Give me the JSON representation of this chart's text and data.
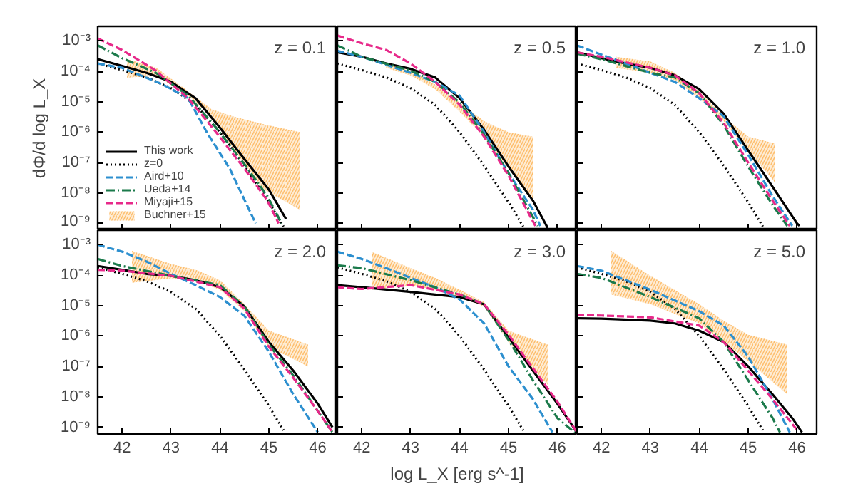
{
  "chart_data": [
    {
      "type": "line",
      "log": true,
      "xlim": [
        41.5,
        46.4
      ],
      "ylim": [
        6e-10,
        0.003
      ],
      "xticks": [
        42,
        43,
        44,
        45,
        46
      ],
      "yticks": [
        {
          "value": 0.001,
          "label": "10⁻³"
        },
        {
          "value": 0.0001,
          "label": "10⁻⁴"
        },
        {
          "value": 1e-05,
          "label": "10⁻⁵"
        },
        {
          "value": 1e-06,
          "label": "10⁻⁶"
        },
        {
          "value": 1e-07,
          "label": "10⁻⁷"
        },
        {
          "value": 1e-08,
          "label": "10⁻⁸"
        },
        {
          "value": 1e-09,
          "label": "10⁻⁹"
        }
      ],
      "tick_labels": "y",
      "ylabel": "dΦ/d log L_X",
      "annotations": [
        "z = 0.1"
      ],
      "legend": "bottom left",
      "series": [
        {
          "name": "This work",
          "type": "line",
          "color": "#000000",
          "line_style": "solid",
          "x": [
            41.5,
            42,
            42.5,
            43,
            43.5,
            44,
            44.5,
            45,
            45.35
          ],
          "values": [
            0.00025,
            0.00015,
            8.9e-05,
            4.5e-05,
            1.3e-05,
            1.4e-06,
            1.3e-07,
            1.3e-08,
            1.4e-09
          ]
        },
        {
          "name": "z=0",
          "type": "line",
          "color": "#000000",
          "line_style": "dotted",
          "x": [
            41.5,
            42,
            42.5,
            43,
            43.5,
            44,
            44.5,
            45,
            45.3
          ],
          "values": [
            0.00018,
            0.00011,
            6.3e-05,
            2.8e-05,
            7.9e-06,
            1e-06,
            7.9e-08,
            5e-09,
            7.9e-10
          ]
        },
        {
          "name": "Aird+10",
          "type": "line",
          "color": "#2c8fcf",
          "line_style": "dashed",
          "x": [
            41.5,
            42,
            42.83,
            43.35,
            43.73,
            44.2,
            44.73
          ],
          "values": [
            0.00018,
            0.00013,
            3.7e-05,
            1.3e-05,
            1e-06,
            6.3e-08,
            1e-09
          ]
        },
        {
          "name": "Ueda+14",
          "type": "line",
          "color": "#1b7a4b",
          "line_style": "dashdot",
          "x": [
            41.5,
            42,
            42.69,
            43.35,
            43.92,
            44.5,
            44.97,
            45.26
          ],
          "values": [
            0.00071,
            0.00027,
            8.9e-05,
            1.6e-05,
            1.4e-06,
            8.9e-08,
            7.9e-09,
            1e-09
          ]
        },
        {
          "name": "Miyaji+15",
          "type": "line",
          "color": "#e7298a",
          "line_style": "dashed",
          "x": [
            41.5,
            42,
            42.69,
            43.35,
            43.92,
            44.5,
            44.97,
            45.2
          ],
          "values": [
            0.0012,
            0.0005,
            0.000105,
            1.3e-05,
            1e-06,
            6.3e-08,
            5.6e-09,
            1e-09
          ]
        },
        {
          "name": "Buchner+15",
          "type": "area",
          "color": "#fdbf6f",
          "x": [
            42.1,
            42.7,
            43.35,
            43.83,
            44.3,
            44.9,
            45.64
          ],
          "values": [
            null,
            null,
            null,
            null,
            null,
            null,
            null
          ],
          "upper": [
            0.00025,
            0.00013,
            2.2e-05,
            5.6e-06,
            3.2e-06,
            1.8e-06,
            1e-06
          ],
          "lower": [
            6.3e-05,
            7.1e-05,
            1.6e-05,
            3.2e-06,
            2.5e-07,
            1.3e-08,
            2.8e-09
          ]
        }
      ]
    },
    {
      "type": "line",
      "log": true,
      "xlim": [
        41.5,
        46.4
      ],
      "ylim": [
        6e-10,
        0.003
      ],
      "xticks": [
        42,
        43,
        44,
        45,
        46
      ],
      "yticks": [
        {
          "value": 0.001,
          "label": null
        },
        {
          "value": 0.0001,
          "label": null
        },
        {
          "value": 1e-05,
          "label": null
        },
        {
          "value": 1e-06,
          "label": null
        },
        {
          "value": 1e-07,
          "label": null
        },
        {
          "value": 1e-08,
          "label": null
        },
        {
          "value": 1e-09,
          "label": null
        }
      ],
      "tick_labels": false,
      "annotations": [
        "z = 0.5"
      ],
      "series": [
        {
          "type": "line",
          "color": "#000000",
          "line_style": "solid",
          "x": [
            41.5,
            42,
            42.5,
            43,
            43.5,
            44,
            44.5,
            45,
            45.5,
            45.8
          ],
          "values": [
            0.00042,
            0.0003,
            0.00018,
            0.00012,
            6.3e-05,
            1.3e-05,
            1.2e-06,
            7.4e-08,
            5.6e-09,
            7.1e-10
          ]
        },
        {
          "type": "line",
          "color": "#000000",
          "line_style": "dotted",
          "x": [
            41.5,
            42,
            42.5,
            43,
            43.5,
            44,
            44.5,
            45,
            45.3
          ],
          "values": [
            0.00018,
            0.00011,
            6.3e-05,
            2.8e-05,
            7.9e-06,
            1e-06,
            7.9e-08,
            5e-09,
            7.9e-10
          ]
        },
        {
          "type": "line",
          "color": "#2c8fcf",
          "line_style": "dashed",
          "x": [
            41.5,
            42,
            43,
            43.5,
            44,
            44.5,
            45,
            45.5,
            45.65
          ],
          "values": [
            0.00047,
            0.0003,
            8.9e-05,
            4.5e-05,
            1.6e-05,
            1e-06,
            4.5e-08,
            2.8e-09,
            8.3e-10
          ]
        },
        {
          "type": "line",
          "color": "#1b7a4b",
          "line_style": "dashdot",
          "x": [
            41.5,
            42,
            43,
            43.5,
            44,
            44.5,
            45,
            45.6
          ],
          "values": [
            0.00071,
            0.0003,
            0.000105,
            4.5e-05,
            9.3e-06,
            8.3e-07,
            4.5e-08,
            8.3e-10
          ]
        },
        {
          "type": "line",
          "color": "#e7298a",
          "line_style": "dashed",
          "x": [
            41.5,
            42,
            42.5,
            43,
            43.5,
            44,
            44.5,
            45,
            45.55
          ],
          "values": [
            0.0015,
            0.00083,
            0.0005,
            0.00018,
            4.5e-05,
            7.9e-06,
            7.1e-07,
            3.7e-08,
            8.3e-10
          ]
        },
        {
          "type": "area",
          "color": "#fdbf6f",
          "x": [
            42.5,
            43,
            43.5,
            44,
            44.5,
            45,
            45.5
          ],
          "values": [
            null,
            null,
            null,
            null,
            null,
            null,
            null
          ],
          "upper": [
            0.00018,
            0.000105,
            3.7e-05,
            9.3e-06,
            2.3e-06,
            1e-06,
            7.1e-07
          ],
          "lower": [
            0.00013,
            7.4e-05,
            2.6e-05,
            4.7e-06,
            7.1e-07,
            6.3e-08,
            5.6e-09
          ]
        }
      ]
    },
    {
      "type": "line",
      "log": true,
      "xlim": [
        41.5,
        46.4
      ],
      "ylim": [
        6e-10,
        0.003
      ],
      "xticks": [
        42,
        43,
        44,
        45,
        46
      ],
      "yticks": [
        {
          "value": 0.001,
          "label": null
        },
        {
          "value": 0.0001,
          "label": null
        },
        {
          "value": 1e-05,
          "label": null
        },
        {
          "value": 1e-06,
          "label": null
        },
        {
          "value": 1e-07,
          "label": null
        },
        {
          "value": 1e-08,
          "label": null
        },
        {
          "value": 1e-09,
          "label": null
        }
      ],
      "tick_labels": false,
      "annotations": [
        "z = 1.0"
      ],
      "series": [
        {
          "type": "line",
          "color": "#000000",
          "line_style": "solid",
          "x": [
            41.5,
            42,
            42.5,
            43,
            43.5,
            44,
            44.5,
            45,
            45.5,
            46,
            46.05
          ],
          "values": [
            0.00042,
            0.00027,
            0.00018,
            0.00013,
            7.4e-05,
            2.6e-05,
            4e-06,
            2.5e-07,
            1.6e-08,
            1e-09,
            8.3e-10
          ]
        },
        {
          "type": "line",
          "color": "#000000",
          "line_style": "dotted",
          "x": [
            41.5,
            42,
            42.5,
            43,
            43.5,
            44,
            44.5,
            45,
            45.3
          ],
          "values": [
            0.00018,
            0.00011,
            6.3e-05,
            2.8e-05,
            7.9e-06,
            1e-06,
            7.9e-08,
            5e-09,
            7.9e-10
          ]
        },
        {
          "type": "line",
          "color": "#2c8fcf",
          "line_style": "dashed",
          "x": [
            41.5,
            42,
            42.5,
            43,
            43.5,
            44,
            44.5,
            45,
            45.5,
            45.9
          ],
          "values": [
            0.00071,
            0.00035,
            0.00018,
            8.9e-05,
            4.5e-05,
            1.3e-05,
            3.3e-06,
            1.8e-07,
            7.9e-09,
            8.3e-10
          ]
        },
        {
          "type": "line",
          "color": "#1b7a4b",
          "line_style": "dashdot",
          "x": [
            41.5,
            42,
            43,
            43.5,
            44,
            44.5,
            45,
            45.5,
            45.8
          ],
          "values": [
            0.00038,
            0.00025,
            8.9e-05,
            6.3e-05,
            1.9e-05,
            1.7e-06,
            7.4e-08,
            4e-09,
            8.3e-10
          ]
        },
        {
          "type": "line",
          "color": "#e7298a",
          "line_style": "dashed",
          "x": [
            41.5,
            42,
            43,
            43.5,
            44,
            44.5,
            45,
            45.5,
            45.85
          ],
          "values": [
            0.00042,
            0.0003,
            0.00013,
            7.4e-05,
            1.9e-05,
            2e-06,
            1e-07,
            5.6e-09,
            8.3e-10
          ]
        },
        {
          "type": "area",
          "color": "#fdbf6f",
          "x": [
            42.3,
            43,
            43.5,
            44,
            44.5,
            45,
            45.55
          ],
          "values": [
            null,
            null,
            null,
            null,
            null,
            null,
            null
          ],
          "upper": [
            0.0003,
            0.00021,
            8.9e-05,
            2.2e-05,
            3.3e-06,
            7.1e-07,
            4.2e-07
          ],
          "lower": [
            0.00013,
            8.9e-05,
            5.2e-05,
            1.3e-05,
            2.3e-06,
            2.5e-07,
            2.2e-08
          ]
        }
      ]
    },
    {
      "type": "line",
      "log": true,
      "xlim": [
        41.5,
        46.4
      ],
      "ylim": [
        6e-10,
        0.003
      ],
      "xticks": [
        42,
        43,
        44,
        45,
        46
      ],
      "yticks": [
        {
          "value": 0.001,
          "label": "10⁻³"
        },
        {
          "value": 0.0001,
          "label": "10⁻⁴"
        },
        {
          "value": 1e-05,
          "label": "10⁻⁵"
        },
        {
          "value": 1e-06,
          "label": "10⁻⁶"
        },
        {
          "value": 1e-07,
          "label": "10⁻⁷"
        },
        {
          "value": 1e-08,
          "label": "10⁻⁸"
        },
        {
          "value": 1e-09,
          "label": "10⁻⁹"
        }
      ],
      "annotations": [
        "z = 2.0"
      ],
      "series": [
        {
          "type": "line",
          "color": "#000000",
          "line_style": "solid",
          "x": [
            41.5,
            42,
            42.5,
            43,
            43.5,
            44,
            44.5,
            45,
            45.5,
            46,
            46.3
          ],
          "values": [
            0.0002,
            0.00015,
            0.00011,
            9.5e-05,
            6.8e-05,
            4e-05,
            9.3e-06,
            6.3e-07,
            7.2e-08,
            5.9e-09,
            1e-09
          ]
        },
        {
          "type": "line",
          "color": "#000000",
          "line_style": "dotted",
          "x": [
            41.5,
            42,
            42.5,
            43,
            43.5,
            44,
            44.5,
            45,
            45.3
          ],
          "values": [
            0.00018,
            0.00011,
            6.3e-05,
            2.8e-05,
            7.9e-06,
            1e-06,
            7.9e-08,
            5e-09,
            7.9e-10
          ]
        },
        {
          "type": "line",
          "color": "#2c8fcf",
          "line_style": "dashed",
          "x": [
            41.5,
            42,
            42.5,
            43,
            43.5,
            44,
            44.5,
            45,
            45.5,
            46
          ],
          "values": [
            0.001,
            0.00059,
            0.00028,
            0.00011,
            4.7e-05,
            1.9e-05,
            4.6e-06,
            3e-07,
            1.2e-08,
            6.8e-10
          ]
        },
        {
          "type": "line",
          "color": "#1b7a4b",
          "line_style": "dashdot",
          "x": [
            41.5,
            42,
            43,
            44,
            44.5,
            45,
            45.5,
            46,
            46.3
          ],
          "values": [
            0.00034,
            0.0002,
            9.5e-05,
            4.7e-05,
            9.3e-06,
            5.2e-07,
            5e-08,
            3.4e-09,
            6.8e-10
          ]
        },
        {
          "type": "line",
          "color": "#e7298a",
          "line_style": "dashed",
          "x": [
            41.5,
            42,
            43,
            44,
            44.5,
            45,
            45.5,
            46,
            46.3
          ],
          "values": [
            0.00015,
            0.00014,
            9.5e-05,
            4e-05,
            7.9e-06,
            4.4e-07,
            4.2e-08,
            3.4e-09,
            6.8e-10
          ]
        },
        {
          "type": "area",
          "color": "#fdbf6f",
          "x": [
            42.2,
            43,
            43.5,
            44,
            44.5,
            45,
            45.8
          ],
          "values": [
            null,
            null,
            null,
            null,
            null,
            null,
            null
          ],
          "upper": [
            0.00063,
            0.00023,
            0.00015,
            6.8e-05,
            1.1e-05,
            1.5e-06,
            5.2e-07
          ],
          "lower": [
            5.6e-05,
            7.9e-05,
            6.8e-05,
            3.3e-05,
            6.5e-06,
            4.4e-07,
            1e-07
          ]
        }
      ]
    },
    {
      "type": "line",
      "log": true,
      "xlim": [
        41.5,
        46.4
      ],
      "ylim": [
        6e-10,
        0.003
      ],
      "xticks": [
        42,
        43,
        44,
        45,
        46
      ],
      "yticks": [
        {
          "value": 0.001,
          "label": null
        },
        {
          "value": 0.0001,
          "label": null
        },
        {
          "value": 1e-05,
          "label": null
        },
        {
          "value": 1e-06,
          "label": null
        },
        {
          "value": 1e-07,
          "label": null
        },
        {
          "value": 1e-08,
          "label": null
        },
        {
          "value": 1e-09,
          "label": null
        }
      ],
      "tick_labels": "x",
      "xlabel": "log L_X [erg s^-1]",
      "annotations": [
        "z = 3.0"
      ],
      "series": [
        {
          "type": "line",
          "color": "#000000",
          "line_style": "solid",
          "x": [
            41.5,
            42,
            43,
            43.5,
            44,
            44.5,
            45,
            45.5,
            46,
            46.4
          ],
          "values": [
            4.7e-05,
            4e-05,
            2.8e-05,
            2.3e-05,
            1.9e-05,
            1.1e-05,
            8.9e-07,
            7.2e-08,
            5.9e-09,
            6.8e-10
          ]
        },
        {
          "type": "line",
          "color": "#000000",
          "line_style": "dotted",
          "x": [
            41.5,
            42,
            42.5,
            43,
            43.5,
            44,
            44.5,
            45,
            45.3
          ],
          "values": [
            0.00018,
            0.00011,
            6.3e-05,
            2.8e-05,
            7.9e-06,
            1e-06,
            7.9e-08,
            5e-09,
            7.9e-10
          ]
        },
        {
          "type": "line",
          "color": "#2c8fcf",
          "line_style": "dashed",
          "x": [
            41.5,
            42,
            42.5,
            43,
            43.5,
            44,
            44.5,
            45,
            45.5,
            45.9
          ],
          "values": [
            0.00059,
            0.00034,
            0.00017,
            8.1e-05,
            4e-05,
            1.6e-05,
            2.6e-06,
            1e-07,
            8.3e-09,
            6.8e-10
          ]
        },
        {
          "type": "line",
          "color": "#1b7a4b",
          "line_style": "dashdot",
          "x": [
            41.5,
            42,
            43,
            44,
            44.5,
            45,
            45.5,
            46,
            46.35
          ],
          "values": [
            0.00021,
            0.00017,
            6.8e-05,
            2.3e-05,
            1.1e-05,
            7.4e-07,
            3.5e-08,
            2e-09,
            6.8e-10
          ]
        },
        {
          "type": "line",
          "color": "#e7298a",
          "line_style": "dashed",
          "x": [
            41.5,
            42,
            43,
            44,
            44.5,
            45,
            45.5,
            46,
            46.4
          ],
          "values": [
            4e-05,
            3.5e-05,
            4.7e-05,
            2.3e-05,
            1.1e-05,
            1.1e-06,
            8.7e-08,
            6.9e-09,
            6.8e-10
          ]
        },
        {
          "type": "area",
          "color": "#fdbf6f",
          "x": [
            42.2,
            43,
            43.5,
            44,
            44.5,
            45,
            45.8
          ],
          "values": [
            null,
            null,
            null,
            null,
            null,
            null,
            null
          ],
          "upper": [
            0.00059,
            0.00017,
            8.1e-05,
            3.3e-05,
            1.3e-05,
            1.5e-06,
            5.2e-07
          ],
          "lower": [
            3.3e-05,
            4.7e-05,
            3.3e-05,
            1.9e-05,
            9.3e-06,
            6.3e-07,
            2.5e-08
          ]
        }
      ]
    },
    {
      "type": "line",
      "log": true,
      "xlim": [
        41.5,
        46.4
      ],
      "ylim": [
        6e-10,
        0.003
      ],
      "xticks": [
        42,
        43,
        44,
        45,
        46
      ],
      "yticks": [
        {
          "value": 0.001,
          "label": null
        },
        {
          "value": 0.0001,
          "label": null
        },
        {
          "value": 1e-05,
          "label": null
        },
        {
          "value": 1e-06,
          "label": null
        },
        {
          "value": 1e-07,
          "label": null
        },
        {
          "value": 1e-08,
          "label": null
        },
        {
          "value": 1e-09,
          "label": null
        }
      ],
      "tick_labels": "x",
      "annotations": [
        "z = 5.0"
      ],
      "series": [
        {
          "type": "line",
          "color": "#000000",
          "line_style": "solid",
          "x": [
            41.5,
            42,
            43,
            43.5,
            44,
            44.5,
            45,
            45.5,
            45.9,
            46.1
          ],
          "values": [
            3.8e-06,
            3.7e-06,
            3.2e-06,
            2.6e-06,
            1.5e-06,
            6.3e-07,
            1e-07,
            1.2e-08,
            2e-09,
            6.8e-10
          ]
        },
        {
          "type": "line",
          "color": "#000000",
          "line_style": "dotted",
          "x": [
            41.5,
            42,
            42.5,
            43,
            43.5,
            44,
            44.5,
            45,
            45.3
          ],
          "values": [
            0.00018,
            0.00011,
            6.3e-05,
            2.8e-05,
            7.9e-06,
            1e-06,
            7.9e-08,
            5e-09,
            7.9e-10
          ]
        },
        {
          "type": "line",
          "color": "#2c8fcf",
          "line_style": "dashed",
          "x": [
            41.5,
            42,
            43,
            44,
            44.5,
            45,
            45.5,
            45.85
          ],
          "values": [
            0.0002,
            0.00014,
            3.3e-05,
            6.5e-06,
            2.2e-06,
            2.1e-07,
            8.3e-09,
            6.8e-10
          ]
        },
        {
          "type": "line",
          "color": "#1b7a4b",
          "line_style": "dashdot",
          "x": [
            41.5,
            42,
            43,
            44,
            44.5,
            45,
            45.5,
            45.65
          ],
          "values": [
            0.00011,
            8.1e-05,
            1.9e-05,
            3.8e-06,
            6.3e-07,
            3.5e-08,
            2e-09,
            6.8e-10
          ]
        },
        {
          "type": "line",
          "color": "#e7298a",
          "line_style": "dashed",
          "x": [
            41.5,
            42,
            43,
            44,
            44.5,
            45,
            45.5,
            46
          ],
          "values": [
            4.9e-06,
            4.7e-06,
            4.1e-06,
            2.2e-06,
            6.3e-07,
            7.2e-08,
            8.3e-09,
            8.1e-10
          ]
        },
        {
          "type": "area",
          "color": "#fdbf6f",
          "x": [
            42.2,
            43,
            44,
            44.5,
            45,
            45.8
          ],
          "values": [
            null,
            null,
            null,
            null,
            null,
            null
          ],
          "upper": [
            0.00063,
            9.5e-05,
            1.1e-05,
            3.2e-06,
            1.1e-06,
            5.2e-07
          ],
          "lower": [
            2.3e-05,
            1.1e-05,
            2.6e-06,
            6.3e-07,
            1.5e-07,
            1.2e-08
          ]
        }
      ]
    }
  ]
}
